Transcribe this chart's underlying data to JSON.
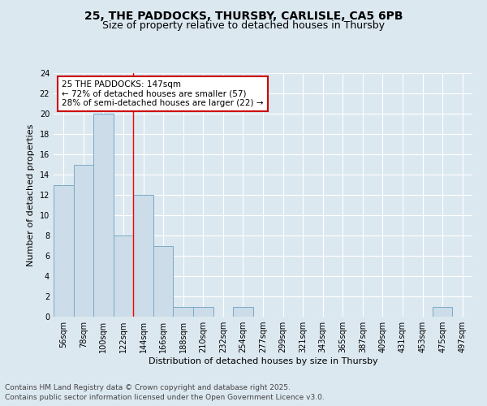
{
  "title1": "25, THE PADDOCKS, THURSBY, CARLISLE, CA5 6PB",
  "title2": "Size of property relative to detached houses in Thursby",
  "xlabel": "Distribution of detached houses by size in Thursby",
  "ylabel": "Number of detached properties",
  "bin_labels": [
    "56sqm",
    "78sqm",
    "100sqm",
    "122sqm",
    "144sqm",
    "166sqm",
    "188sqm",
    "210sqm",
    "232sqm",
    "254sqm",
    "277sqm",
    "299sqm",
    "321sqm",
    "343sqm",
    "365sqm",
    "387sqm",
    "409sqm",
    "431sqm",
    "453sqm",
    "475sqm",
    "497sqm"
  ],
  "bin_values": [
    13,
    15,
    20,
    8,
    12,
    7,
    1,
    1,
    0,
    1,
    0,
    0,
    0,
    0,
    0,
    0,
    0,
    0,
    0,
    1,
    0
  ],
  "bar_color": "#ccdce8",
  "bar_edge_color": "#7aaac8",
  "red_line_x": 4.5,
  "ylim": [
    0,
    24
  ],
  "yticks": [
    0,
    2,
    4,
    6,
    8,
    10,
    12,
    14,
    16,
    18,
    20,
    22,
    24
  ],
  "annotation_text": "25 THE PADDOCKS: 147sqm\n← 72% of detached houses are smaller (57)\n28% of semi-detached houses are larger (22) →",
  "annotation_box_color": "#ffffff",
  "annotation_box_edge": "#cc0000",
  "footer1": "Contains HM Land Registry data © Crown copyright and database right 2025.",
  "footer2": "Contains public sector information licensed under the Open Government Licence v3.0.",
  "background_color": "#dce8f0",
  "grid_color": "#ffffff",
  "title_fontsize": 10,
  "subtitle_fontsize": 9,
  "axis_label_fontsize": 8,
  "tick_fontsize": 7,
  "annotation_fontsize": 7.5,
  "footer_fontsize": 6.5
}
